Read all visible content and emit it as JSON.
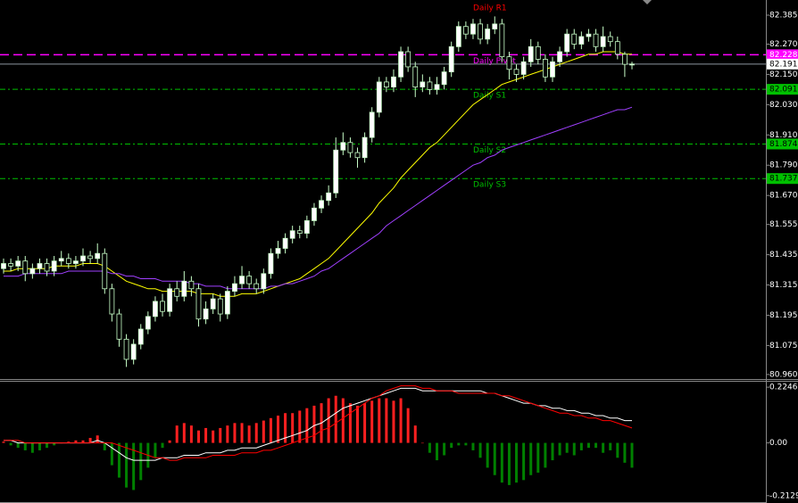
{
  "chart_data": [
    {
      "type": "candlestick",
      "ylim": [
        80.942,
        82.438
      ],
      "yticks": [
        82.385,
        {
          "value": 82.27,
          "label": "82.270"
        },
        {
          "value": 82.15,
          "label": "82.150"
        },
        {
          "value": 82.03,
          "label": "82.030"
        },
        {
          "value": 81.91,
          "label": "81.910"
        },
        {
          "value": 81.79,
          "label": "81.790"
        },
        {
          "value": 81.67,
          "label": "81.670"
        },
        81.555,
        81.435,
        81.315,
        81.195,
        81.075,
        {
          "value": 80.96,
          "label": "80.960"
        }
      ],
      "up_color": "#ffffff",
      "down_color": "#000000",
      "wick_color": "#c8ffc8",
      "candles": {
        "open": [
          81.38,
          81.4,
          81.39,
          81.41,
          81.36,
          81.38,
          81.4,
          81.37,
          81.41,
          81.42,
          81.4,
          81.41,
          81.43,
          81.42,
          81.44,
          81.3,
          81.2,
          81.1,
          81.02,
          81.08,
          81.14,
          81.19,
          81.25,
          81.21,
          81.3,
          81.27,
          81.33,
          81.3,
          81.18,
          81.22,
          81.26,
          81.2,
          81.29,
          81.32,
          81.35,
          81.32,
          81.3,
          81.36,
          81.44,
          81.46,
          81.5,
          81.53,
          81.52,
          81.57,
          81.62,
          81.65,
          81.68,
          81.85,
          81.88,
          81.84,
          81.82,
          81.9,
          82.0,
          82.12,
          82.1,
          82.14,
          82.24,
          82.18,
          82.1,
          82.12,
          82.09,
          82.11,
          82.16,
          82.26,
          82.34,
          82.31,
          82.35,
          82.29,
          82.33,
          82.35,
          82.22,
          82.17,
          82.15,
          82.2,
          82.26,
          82.21,
          82.14,
          82.2,
          82.24,
          82.31,
          82.27,
          82.3,
          82.31,
          82.26,
          82.3,
          82.28,
          82.23,
          82.19
        ],
        "high": [
          81.42,
          81.42,
          81.43,
          81.43,
          81.4,
          81.42,
          81.42,
          81.43,
          81.45,
          81.44,
          81.43,
          81.46,
          81.45,
          81.48,
          81.46,
          81.32,
          81.22,
          81.12,
          81.1,
          81.16,
          81.21,
          81.27,
          81.28,
          81.32,
          81.33,
          81.37,
          81.35,
          81.32,
          81.25,
          81.28,
          81.28,
          81.31,
          81.35,
          81.39,
          81.37,
          81.34,
          81.38,
          81.46,
          81.49,
          81.52,
          81.55,
          81.55,
          81.59,
          81.64,
          81.67,
          81.71,
          81.9,
          81.92,
          81.9,
          81.86,
          81.92,
          82.02,
          82.14,
          82.14,
          82.17,
          82.26,
          82.26,
          82.2,
          82.15,
          82.14,
          82.14,
          82.18,
          82.28,
          82.36,
          82.36,
          82.37,
          82.37,
          82.35,
          82.38,
          82.37,
          82.24,
          82.19,
          82.22,
          82.29,
          82.28,
          82.23,
          82.22,
          82.26,
          82.33,
          82.33,
          82.32,
          82.33,
          82.33,
          82.34,
          82.32,
          82.3,
          82.24,
          82.2
        ],
        "low": [
          81.36,
          81.37,
          81.37,
          81.33,
          81.34,
          81.36,
          81.35,
          81.35,
          81.39,
          81.38,
          81.38,
          81.39,
          81.4,
          81.4,
          81.28,
          81.17,
          81.07,
          80.99,
          81.0,
          81.06,
          81.12,
          81.17,
          81.19,
          81.19,
          81.25,
          81.25,
          81.27,
          81.15,
          81.16,
          81.2,
          81.17,
          81.18,
          81.27,
          81.3,
          81.3,
          81.28,
          81.28,
          81.34,
          81.42,
          81.44,
          81.48,
          81.5,
          81.5,
          81.55,
          81.6,
          81.63,
          81.66,
          81.83,
          81.82,
          81.78,
          81.8,
          81.88,
          81.98,
          82.08,
          82.08,
          82.12,
          82.16,
          82.06,
          82.08,
          82.07,
          82.07,
          82.09,
          82.14,
          82.24,
          82.29,
          82.29,
          82.27,
          82.27,
          82.31,
          82.2,
          82.13,
          82.12,
          82.13,
          82.18,
          82.19,
          82.12,
          82.12,
          82.18,
          82.22,
          82.25,
          82.25,
          82.28,
          82.24,
          82.24,
          82.26,
          82.21,
          82.14,
          82.17
        ],
        "close": [
          81.4,
          81.39,
          81.41,
          81.36,
          81.38,
          81.4,
          81.37,
          81.41,
          81.42,
          81.4,
          81.41,
          81.43,
          81.42,
          81.44,
          81.3,
          81.2,
          81.1,
          81.02,
          81.08,
          81.14,
          81.19,
          81.25,
          81.21,
          81.3,
          81.27,
          81.33,
          81.3,
          81.18,
          81.22,
          81.26,
          81.2,
          81.29,
          81.32,
          81.35,
          81.32,
          81.3,
          81.36,
          81.44,
          81.46,
          81.5,
          81.53,
          81.52,
          81.57,
          81.62,
          81.65,
          81.68,
          81.85,
          81.88,
          81.84,
          81.82,
          81.9,
          82.0,
          82.12,
          82.1,
          82.14,
          82.24,
          82.18,
          82.1,
          82.12,
          82.09,
          82.11,
          82.16,
          82.26,
          82.34,
          82.31,
          82.35,
          82.29,
          82.33,
          82.35,
          82.22,
          82.17,
          82.15,
          82.2,
          82.26,
          82.21,
          82.14,
          82.2,
          82.24,
          82.31,
          82.27,
          82.3,
          82.31,
          82.26,
          82.3,
          82.28,
          82.23,
          82.19,
          82.191
        ]
      },
      "lines": [
        {
          "color": "#ffff00",
          "values": [
            81.37,
            81.37,
            81.38,
            81.38,
            81.38,
            81.38,
            81.38,
            81.39,
            81.39,
            81.39,
            81.39,
            81.4,
            81.4,
            81.4,
            81.39,
            81.37,
            81.35,
            81.33,
            81.32,
            81.31,
            81.3,
            81.3,
            81.29,
            81.29,
            81.29,
            81.29,
            81.29,
            81.28,
            81.28,
            81.28,
            81.27,
            81.27,
            81.27,
            81.28,
            81.28,
            81.28,
            81.29,
            81.3,
            81.31,
            81.32,
            81.33,
            81.34,
            81.36,
            81.38,
            81.4,
            81.42,
            81.45,
            81.48,
            81.51,
            81.54,
            81.57,
            81.6,
            81.64,
            81.67,
            81.7,
            81.74,
            81.77,
            81.8,
            81.83,
            81.86,
            81.88,
            81.91,
            81.94,
            81.97,
            82.0,
            82.03,
            82.05,
            82.07,
            82.09,
            82.11,
            82.12,
            82.13,
            82.14,
            82.15,
            82.16,
            82.17,
            82.18,
            82.19,
            82.2,
            82.21,
            82.22,
            82.23,
            82.23,
            82.24,
            82.24,
            82.24,
            82.23,
            82.23
          ]
        },
        {
          "color": "#a040ff",
          "values": [
            81.35,
            81.35,
            81.35,
            81.36,
            81.36,
            81.36,
            81.36,
            81.36,
            81.36,
            81.37,
            81.37,
            81.37,
            81.37,
            81.37,
            81.37,
            81.36,
            81.36,
            81.35,
            81.35,
            81.34,
            81.34,
            81.34,
            81.33,
            81.33,
            81.33,
            81.33,
            81.32,
            81.32,
            81.31,
            81.31,
            81.31,
            81.3,
            81.3,
            81.3,
            81.3,
            81.3,
            81.3,
            81.31,
            81.31,
            81.32,
            81.32,
            81.33,
            81.34,
            81.35,
            81.37,
            81.38,
            81.4,
            81.42,
            81.44,
            81.46,
            81.48,
            81.5,
            81.52,
            81.55,
            81.57,
            81.59,
            81.61,
            81.63,
            81.65,
            81.67,
            81.69,
            81.71,
            81.73,
            81.75,
            81.77,
            81.79,
            81.8,
            81.82,
            81.83,
            81.85,
            81.86,
            81.87,
            81.88,
            81.89,
            81.9,
            81.91,
            81.92,
            81.93,
            81.94,
            81.95,
            81.96,
            81.97,
            81.98,
            81.99,
            82.0,
            82.01,
            82.01,
            82.02
          ]
        }
      ],
      "levels": [
        {
          "name": "Daily R1",
          "value": 82.45,
          "color": "#ff0000",
          "dash": "dashdot",
          "text_color": "#ffffff"
        },
        {
          "name": "Daily Pivot",
          "value": 82.228,
          "color": "#ff00ff",
          "dash": "dash",
          "text_color": "#ffffff"
        },
        {
          "name": "Daily S1",
          "value": 82.091,
          "color": "#00c000",
          "dash": "dashdot",
          "text_color": "#000000"
        },
        {
          "name": "Daily S2",
          "value": 81.874,
          "color": "#00c000",
          "dash": "dashdot",
          "text_color": "#000000"
        },
        {
          "name": "Daily S3",
          "value": 81.737,
          "color": "#00c000",
          "dash": "dashdot",
          "text_color": "#000000"
        }
      ],
      "current_price": 82.191,
      "current_color": "#8c96a0"
    },
    {
      "type": "bar",
      "ylim": [
        -0.2424,
        0.2467
      ],
      "yticks": [
        0.22469,
        {
          "value": 0,
          "label": "0.00"
        },
        -0.2129
      ],
      "up_color": "#ff2020",
      "down_color": "#008000",
      "values": [
        0.005,
        -0.01,
        -0.02,
        -0.03,
        -0.04,
        -0.03,
        -0.02,
        -0.01,
        0.0,
        0.005,
        0.01,
        0.01,
        0.02,
        0.03,
        -0.03,
        -0.09,
        -0.14,
        -0.18,
        -0.19,
        -0.15,
        -0.1,
        -0.06,
        -0.02,
        0.01,
        0.07,
        0.08,
        0.07,
        0.05,
        0.06,
        0.05,
        0.06,
        0.07,
        0.08,
        0.08,
        0.07,
        0.08,
        0.09,
        0.1,
        0.11,
        0.12,
        0.12,
        0.13,
        0.14,
        0.15,
        0.16,
        0.18,
        0.19,
        0.18,
        0.16,
        0.15,
        0.16,
        0.17,
        0.18,
        0.18,
        0.17,
        0.18,
        0.14,
        0.07,
        0.0,
        -0.04,
        -0.07,
        -0.05,
        -0.02,
        -0.01,
        -0.01,
        -0.03,
        -0.06,
        -0.1,
        -0.13,
        -0.16,
        -0.17,
        -0.16,
        -0.15,
        -0.13,
        -0.12,
        -0.1,
        -0.07,
        -0.05,
        -0.04,
        -0.05,
        -0.03,
        -0.02,
        -0.02,
        -0.04,
        -0.03,
        -0.06,
        -0.08,
        -0.1
      ],
      "lines": [
        {
          "color": "#ffffff",
          "values": [
            0.01,
            0.01,
            0.0,
            0.0,
            0.0,
            0.0,
            0.0,
            0.0,
            0.0,
            0.0,
            0.0,
            0.0,
            0.0,
            0.01,
            0.0,
            -0.02,
            -0.04,
            -0.06,
            -0.07,
            -0.07,
            -0.07,
            -0.07,
            -0.06,
            -0.06,
            -0.06,
            -0.05,
            -0.05,
            -0.05,
            -0.04,
            -0.04,
            -0.04,
            -0.03,
            -0.03,
            -0.02,
            -0.02,
            -0.02,
            -0.01,
            0.0,
            0.01,
            0.02,
            0.03,
            0.04,
            0.05,
            0.07,
            0.08,
            0.1,
            0.12,
            0.14,
            0.15,
            0.16,
            0.17,
            0.18,
            0.19,
            0.2,
            0.21,
            0.22,
            0.22,
            0.22,
            0.21,
            0.21,
            0.21,
            0.21,
            0.21,
            0.21,
            0.21,
            0.21,
            0.21,
            0.2,
            0.2,
            0.19,
            0.18,
            0.17,
            0.16,
            0.16,
            0.15,
            0.15,
            0.14,
            0.14,
            0.13,
            0.13,
            0.12,
            0.12,
            0.11,
            0.11,
            0.1,
            0.1,
            0.09,
            0.09
          ]
        },
        {
          "color": "#ff0000",
          "values": [
            0.01,
            0.01,
            0.01,
            0.0,
            0.0,
            0.0,
            0.0,
            0.0,
            0.0,
            0.0,
            0.0,
            0.0,
            0.0,
            0.0,
            0.0,
            0.0,
            -0.01,
            -0.02,
            -0.03,
            -0.04,
            -0.05,
            -0.06,
            -0.06,
            -0.07,
            -0.07,
            -0.06,
            -0.06,
            -0.06,
            -0.06,
            -0.05,
            -0.05,
            -0.05,
            -0.05,
            -0.04,
            -0.04,
            -0.04,
            -0.03,
            -0.03,
            -0.02,
            -0.01,
            0.0,
            0.01,
            0.02,
            0.03,
            0.05,
            0.06,
            0.08,
            0.1,
            0.12,
            0.14,
            0.16,
            0.18,
            0.19,
            0.21,
            0.22,
            0.23,
            0.23,
            0.23,
            0.22,
            0.22,
            0.21,
            0.21,
            0.21,
            0.2,
            0.2,
            0.2,
            0.2,
            0.2,
            0.2,
            0.19,
            0.19,
            0.18,
            0.17,
            0.16,
            0.15,
            0.14,
            0.13,
            0.12,
            0.12,
            0.11,
            0.11,
            0.1,
            0.1,
            0.09,
            0.09,
            0.08,
            0.07,
            0.06
          ]
        }
      ]
    }
  ]
}
